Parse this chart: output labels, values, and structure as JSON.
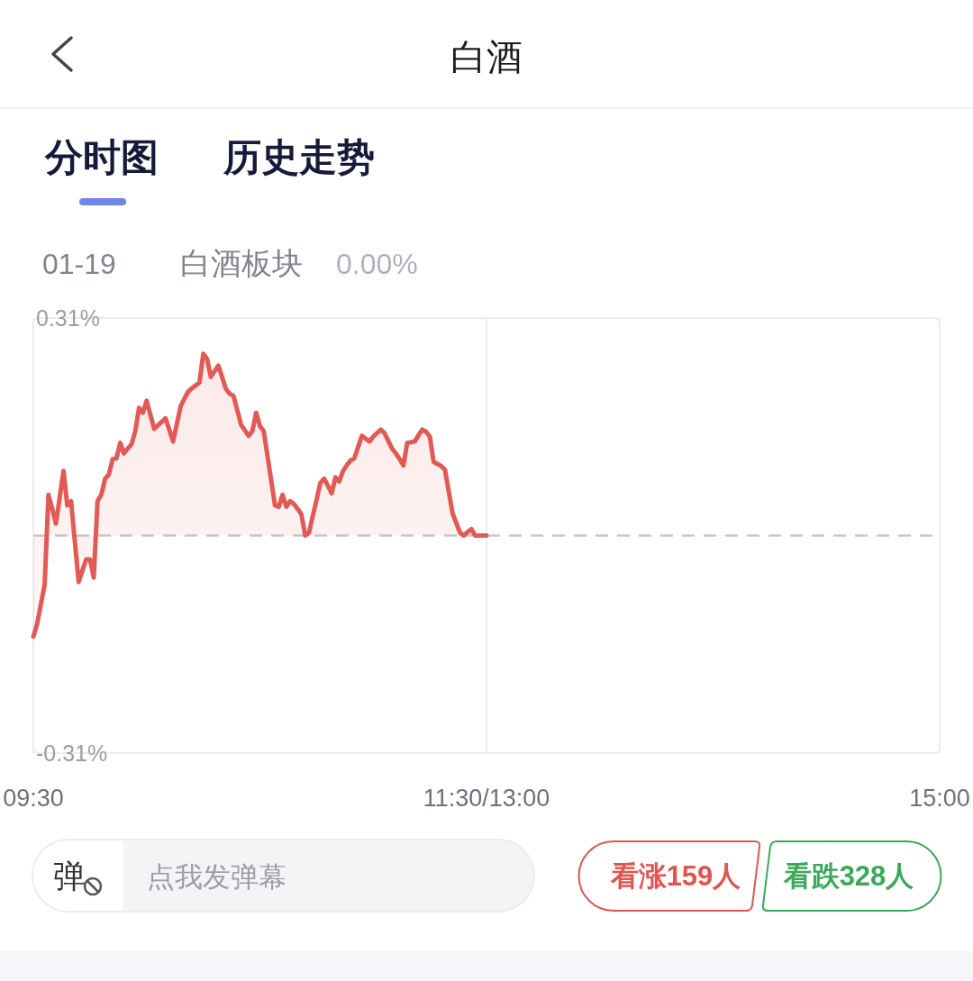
{
  "chart_data": {
    "type": "area",
    "title": "白酒",
    "annotations": [
      "分时图",
      "历史走势",
      "01-19",
      "白酒板块",
      "0.00%",
      "弹",
      "点我发弹幕",
      "看涨159人",
      "看跌328人"
    ],
    "categories": [
      "09:30",
      null,
      null,
      null,
      null,
      null,
      null,
      null,
      null,
      null,
      null,
      null,
      null,
      null,
      null,
      null,
      null,
      null,
      null,
      null,
      null,
      null,
      null,
      null,
      null,
      null,
      null,
      null,
      null,
      null,
      null,
      null,
      null,
      null,
      null,
      null,
      null,
      null,
      null,
      null,
      null,
      null,
      null,
      null,
      null,
      null,
      null,
      null,
      null,
      null,
      null,
      null,
      null,
      null,
      null,
      null,
      null,
      null,
      null,
      null,
      null,
      null,
      null,
      null,
      null,
      null,
      null,
      null,
      null,
      null,
      null,
      null,
      null,
      null,
      null,
      null,
      null,
      null,
      null,
      null,
      null,
      null,
      null,
      null,
      null,
      null,
      null,
      null,
      null,
      null,
      null,
      null,
      null,
      null,
      null,
      null,
      null,
      null,
      null,
      null,
      null,
      null,
      null,
      null,
      null,
      null,
      null,
      null,
      null,
      null,
      null,
      null,
      null,
      null,
      null,
      null,
      null,
      null,
      null,
      null,
      "11:30/13:00",
      null,
      null,
      null,
      null,
      null,
      null,
      null,
      null,
      null,
      null,
      null,
      null,
      null,
      null,
      null,
      null,
      null,
      null,
      null,
      null,
      null,
      null,
      null,
      null,
      null,
      null,
      null,
      null,
      null,
      null,
      null,
      null,
      null,
      null,
      null,
      null,
      null,
      null,
      null,
      null,
      null,
      null,
      null,
      null,
      null,
      null,
      null,
      null,
      null,
      null,
      null,
      null,
      null,
      null,
      null,
      null,
      null,
      null,
      null,
      null,
      null,
      null,
      null,
      null,
      null,
      null,
      null,
      null,
      null,
      null,
      null,
      null,
      null,
      null,
      null,
      null,
      null,
      null,
      null,
      null,
      null,
      null,
      null,
      null,
      null,
      null,
      null,
      null,
      null,
      null,
      null,
      null,
      null,
      null,
      null,
      null,
      null,
      null,
      null,
      null,
      null,
      null,
      null,
      null,
      null,
      null,
      null,
      null,
      null,
      null,
      null,
      null,
      null,
      null,
      null,
      null,
      null,
      null,
      null,
      "15:00"
    ],
    "series": [
      {
        "color": "#e15a55",
        "values": [
          -0.144,
          -0.126,
          -0.098,
          -0.07,
          0.058,
          0.038,
          0.017,
          0.055,
          0.092,
          0.043,
          0.049,
          -0.009,
          -0.066,
          -0.05,
          -0.034,
          -0.034,
          -0.06,
          0.049,
          0.058,
          0.081,
          0.087,
          0.109,
          0.11,
          0.132,
          0.117,
          0.124,
          0.13,
          0.149,
          0.182,
          0.175,
          0.192,
          0.172,
          0.152,
          0.157,
          0.162,
          0.167,
          0.151,
          0.134,
          0.159,
          0.184,
          0.195,
          0.205,
          0.21,
          0.214,
          0.218,
          0.259,
          0.252,
          0.226,
          0.234,
          0.242,
          0.226,
          0.209,
          0.202,
          0.199,
          0.179,
          0.158,
          0.15,
          0.142,
          0.149,
          0.175,
          0.156,
          0.149,
          0.114,
          0.078,
          0.043,
          0.041,
          0.058,
          0.041,
          0.049,
          0.045,
          0.038,
          0.03,
          0,
          0.004,
          0.028,
          0.051,
          0.075,
          0.081,
          0.071,
          0.06,
          0.083,
          0.077,
          0.092,
          0.1,
          0.107,
          0.11,
          0.126,
          0.142,
          0.138,
          0.134,
          0.141,
          0.146,
          0.151,
          0.146,
          0.135,
          0.124,
          0.117,
          0.109,
          0.1,
          0.132,
          0.133,
          0.134,
          0.143,
          0.151,
          0.148,
          0.141,
          0.105,
          0.102,
          0.099,
          0.094,
          0.063,
          0.032,
          0.018,
          0.004,
          0,
          0.005,
          0.009,
          0,
          0,
          0,
          0,
          null,
          null,
          null,
          null,
          null,
          null,
          null,
          null,
          null,
          null,
          null,
          null,
          null,
          null,
          null,
          null,
          null,
          null,
          null,
          null,
          null,
          null,
          null,
          null,
          null,
          null,
          null,
          null,
          null,
          null,
          null,
          null,
          null,
          null,
          null,
          null,
          null,
          null,
          null,
          null,
          null,
          null,
          null,
          null,
          null,
          null,
          null,
          null,
          null,
          null,
          null,
          null,
          null,
          null,
          null,
          null,
          null,
          null,
          null,
          null,
          null,
          null,
          null,
          null,
          null,
          null,
          null,
          null,
          null,
          null,
          null,
          null,
          null,
          null,
          null,
          null,
          null,
          null,
          null,
          null,
          null,
          null,
          null,
          null,
          null,
          null,
          null,
          null,
          null,
          null,
          null,
          null,
          null,
          null,
          null,
          null,
          null,
          null,
          null,
          null,
          null,
          null,
          null,
          null,
          null,
          null,
          null,
          null,
          null,
          null,
          null,
          null,
          null,
          null,
          null,
          null,
          null,
          null,
          null,
          null
        ]
      }
    ],
    "ylim": [
      -0.31,
      0.31
    ],
    "yticks": [
      {
        "value": -0.31,
        "label": "-0.31%"
      },
      {
        "value": 0.31,
        "label": "0.31%"
      }
    ],
    "grid": "x",
    "ref_lines": [
      {
        "axis": "y",
        "value": 0,
        "color": "#c8c8cc",
        "line_style": "dashed"
      }
    ]
  }
}
